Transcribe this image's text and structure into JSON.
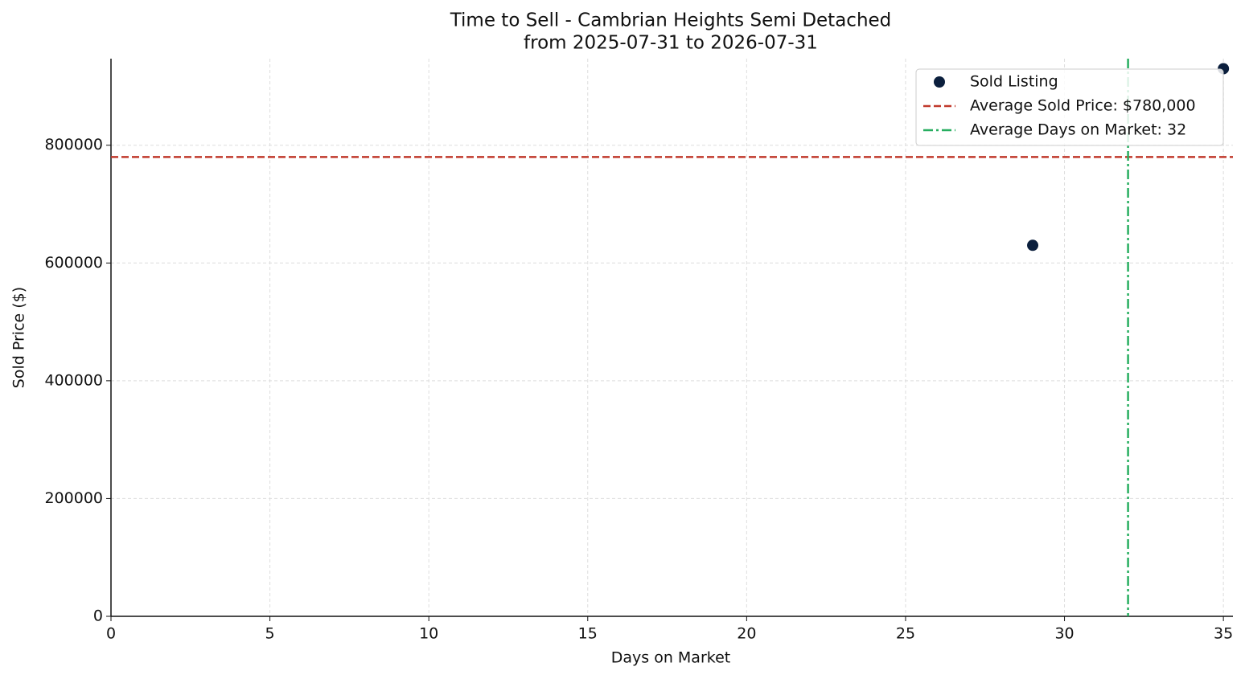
{
  "chart_data": {
    "type": "scatter",
    "title": "Time to Sell - Cambrian Heights Semi Detached",
    "subtitle": "from 2025-07-31 to 2026-07-31",
    "x_label": "Days on Market",
    "y_label": "Sold Price ($)",
    "series": [
      {
        "name": "Sold Listing",
        "color": "#0b1f3d",
        "x": [
          29,
          35
        ],
        "values": [
          630000,
          930000
        ]
      }
    ],
    "hline": {
      "value": 780000,
      "label": "Average Sold Price: $780,000",
      "color": "#c0392b"
    },
    "vline": {
      "value": 32,
      "label": "Average Days on Market: 32",
      "color": "#27ae60"
    },
    "xlim": [
      0,
      35.3
    ],
    "xticks": [
      0,
      5,
      10,
      15,
      20,
      25,
      30,
      35
    ],
    "ylim": [
      0,
      947000
    ],
    "yticks": [
      0,
      200000,
      400000,
      600000,
      800000
    ],
    "grid": true,
    "legend": "upper right"
  }
}
